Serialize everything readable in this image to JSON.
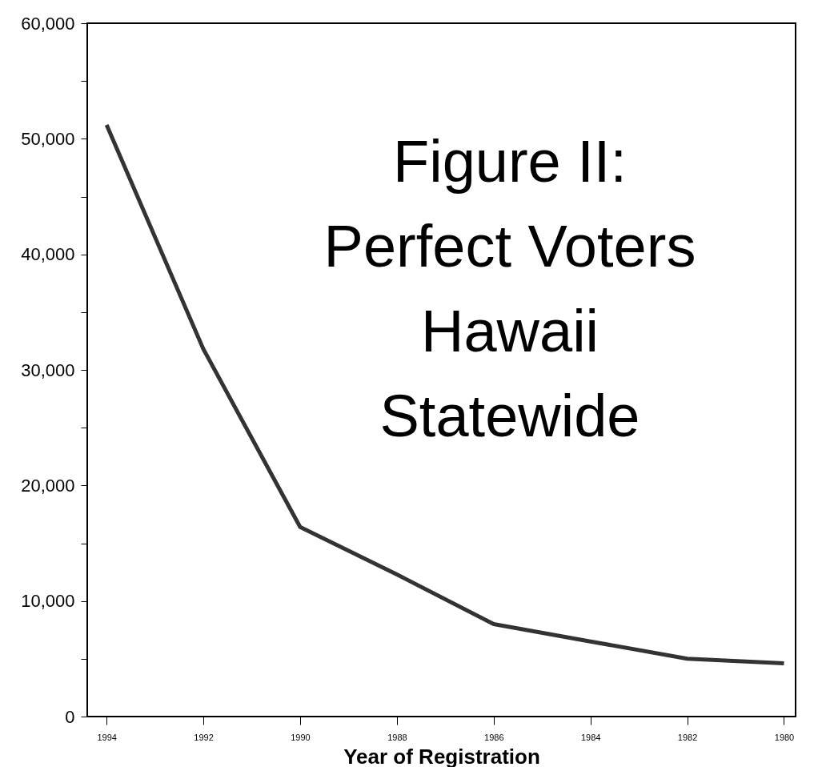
{
  "chart_data": {
    "type": "line",
    "title": "Figure II:\nPerfect Voters\nHawaii\nStatewide",
    "xlabel": "Year of Registration",
    "categories": [
      "1994",
      "1992",
      "1990",
      "1988",
      "1986",
      "1984",
      "1982",
      "1980"
    ],
    "series": [
      {
        "color": "#333333",
        "values": [
          51200,
          31800,
          16400,
          12300,
          8000,
          6500,
          5000,
          4600
        ]
      }
    ],
    "ylim": [
      0,
      60000
    ],
    "yticks": [
      0,
      {
        "value": 5000,
        "label": null
      },
      {
        "value": 10000,
        "label": "10,000"
      },
      {
        "value": 15000,
        "label": null
      },
      {
        "value": 20000,
        "label": "20,000"
      },
      {
        "value": 25000,
        "label": null
      },
      {
        "value": 30000,
        "label": "30,000"
      },
      {
        "value": 35000,
        "label": null
      },
      {
        "value": 40000,
        "label": "40,000"
      },
      {
        "value": 45000,
        "label": null
      },
      {
        "value": 50000,
        "label": "50,000"
      },
      {
        "value": 55000,
        "label": null
      },
      {
        "value": 60000,
        "label": "60,000"
      }
    ],
    "grid": false,
    "marker": "none",
    "line_style": "solid"
  }
}
